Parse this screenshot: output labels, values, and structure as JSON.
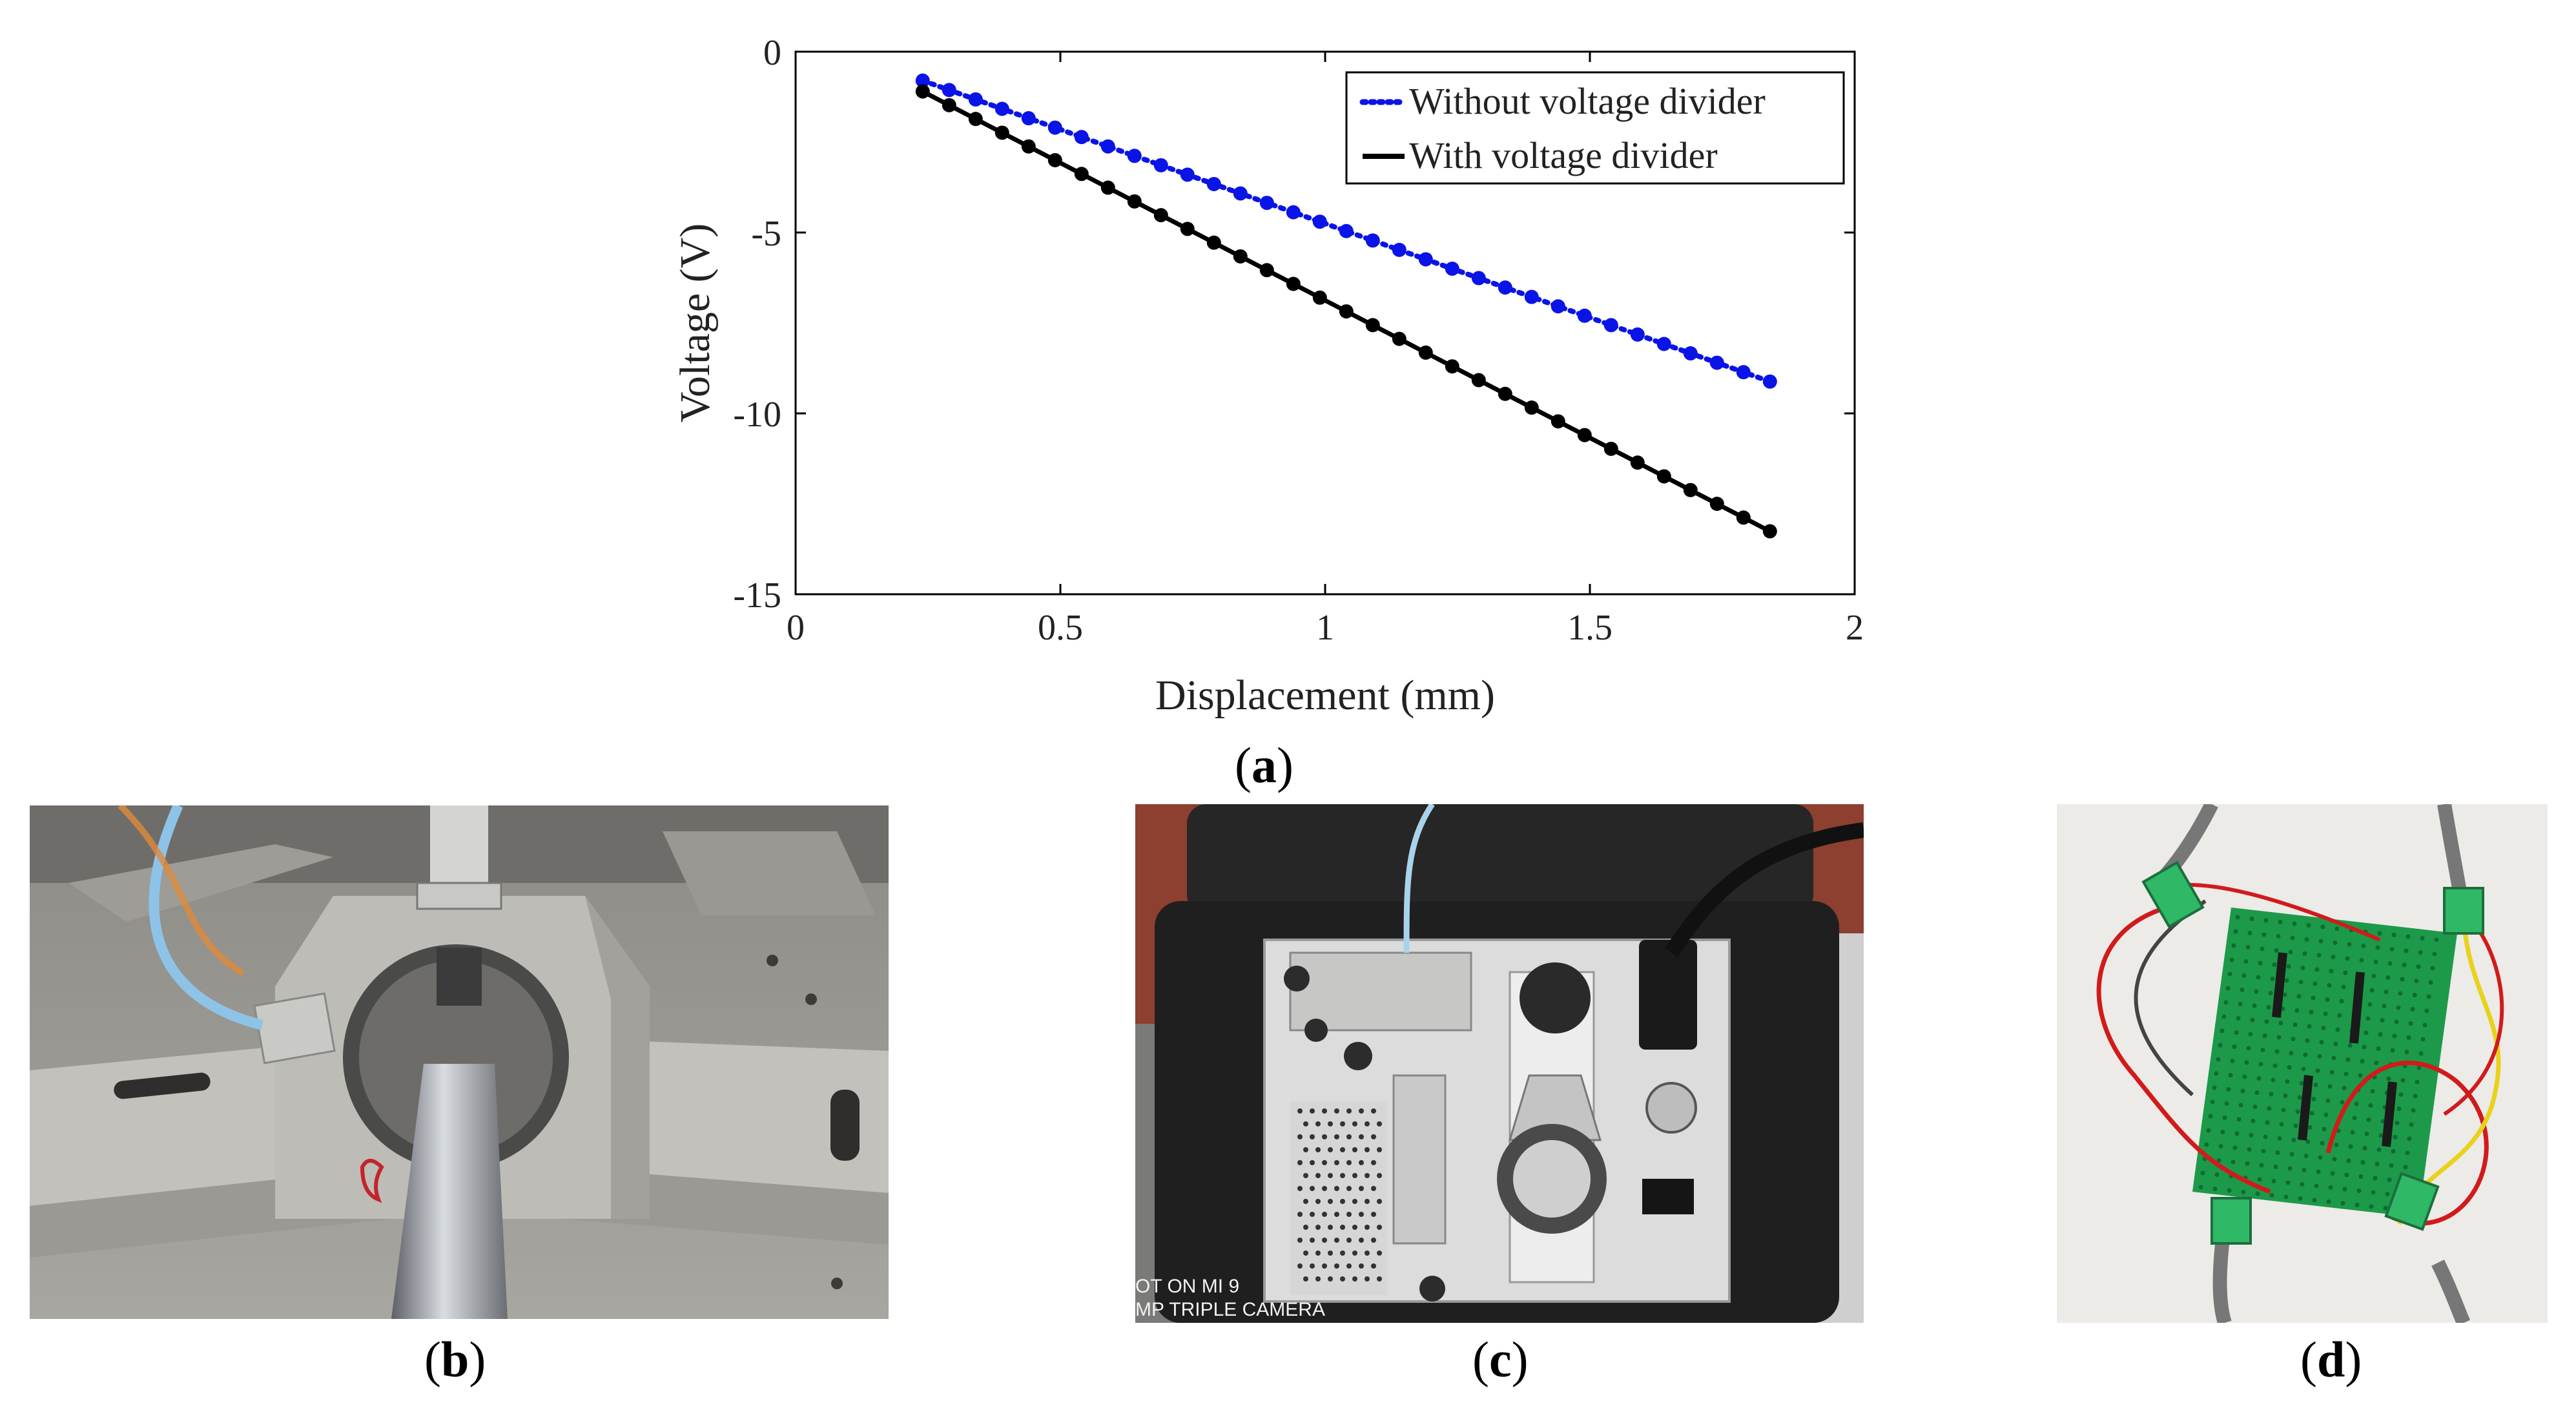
{
  "chart_data": {
    "type": "line",
    "xlabel": "Displacement (mm)",
    "ylabel": "Voltage (V)",
    "xlim": [
      0,
      2
    ],
    "ylim": [
      -15,
      0
    ],
    "x_ticks": [
      0,
      0.5,
      1,
      1.5,
      2
    ],
    "x_tick_labels": [
      "0",
      "0.5",
      "1",
      "1.5",
      "2"
    ],
    "y_ticks": [
      0,
      -5,
      -10,
      -15
    ],
    "y_tick_labels": [
      "0",
      "-5",
      "-10",
      "-15"
    ],
    "grid": false,
    "legend_position": "top-right",
    "x": [
      0.24,
      0.29,
      0.34,
      0.39,
      0.44,
      0.49,
      0.54,
      0.59,
      0.64,
      0.69,
      0.74,
      0.79,
      0.84,
      0.89,
      0.94,
      0.99,
      1.04,
      1.09,
      1.14,
      1.19,
      1.24,
      1.29,
      1.34,
      1.39,
      1.44,
      1.49,
      1.54,
      1.59,
      1.64,
      1.69,
      1.74,
      1.79,
      1.84
    ],
    "series": [
      {
        "name": "Without voltage divider",
        "color": "#0a14e6",
        "line_style": "dotted",
        "values": [
          -0.8,
          -1.06,
          -1.32,
          -1.58,
          -1.84,
          -2.1,
          -2.36,
          -2.62,
          -2.88,
          -3.14,
          -3.4,
          -3.66,
          -3.92,
          -4.18,
          -4.44,
          -4.7,
          -4.96,
          -5.22,
          -5.48,
          -5.74,
          -6.0,
          -6.26,
          -6.52,
          -6.78,
          -7.04,
          -7.3,
          -7.56,
          -7.82,
          -8.08,
          -8.34,
          -8.6,
          -8.86,
          -9.12
        ]
      },
      {
        "name": "With voltage divider",
        "color": "#000000",
        "line_style": "solid",
        "values": [
          -1.1,
          -1.48,
          -1.86,
          -2.24,
          -2.62,
          -3.0,
          -3.38,
          -3.76,
          -4.14,
          -4.52,
          -4.9,
          -5.28,
          -5.66,
          -6.04,
          -6.42,
          -6.8,
          -7.18,
          -7.56,
          -7.94,
          -8.32,
          -8.7,
          -9.08,
          -9.46,
          -9.84,
          -10.22,
          -10.6,
          -10.98,
          -11.36,
          -11.74,
          -12.12,
          -12.5,
          -12.88,
          -13.26
        ]
      }
    ]
  },
  "panels": {
    "a": "a",
    "b": "b",
    "c": "c",
    "d": "d"
  },
  "photo_c": {
    "watermark_line1": "OT ON MI 9",
    "watermark_line2": "MP TRIPLE CAMERA"
  },
  "colors": {
    "series_blue": "#0a14e6",
    "series_black": "#000000",
    "pcb_green": "#1c9a4a",
    "wire_red": "#d11b1b",
    "wire_yellow": "#e8d21a",
    "case_black": "#222222",
    "aluminum": "#b9b9b6"
  }
}
